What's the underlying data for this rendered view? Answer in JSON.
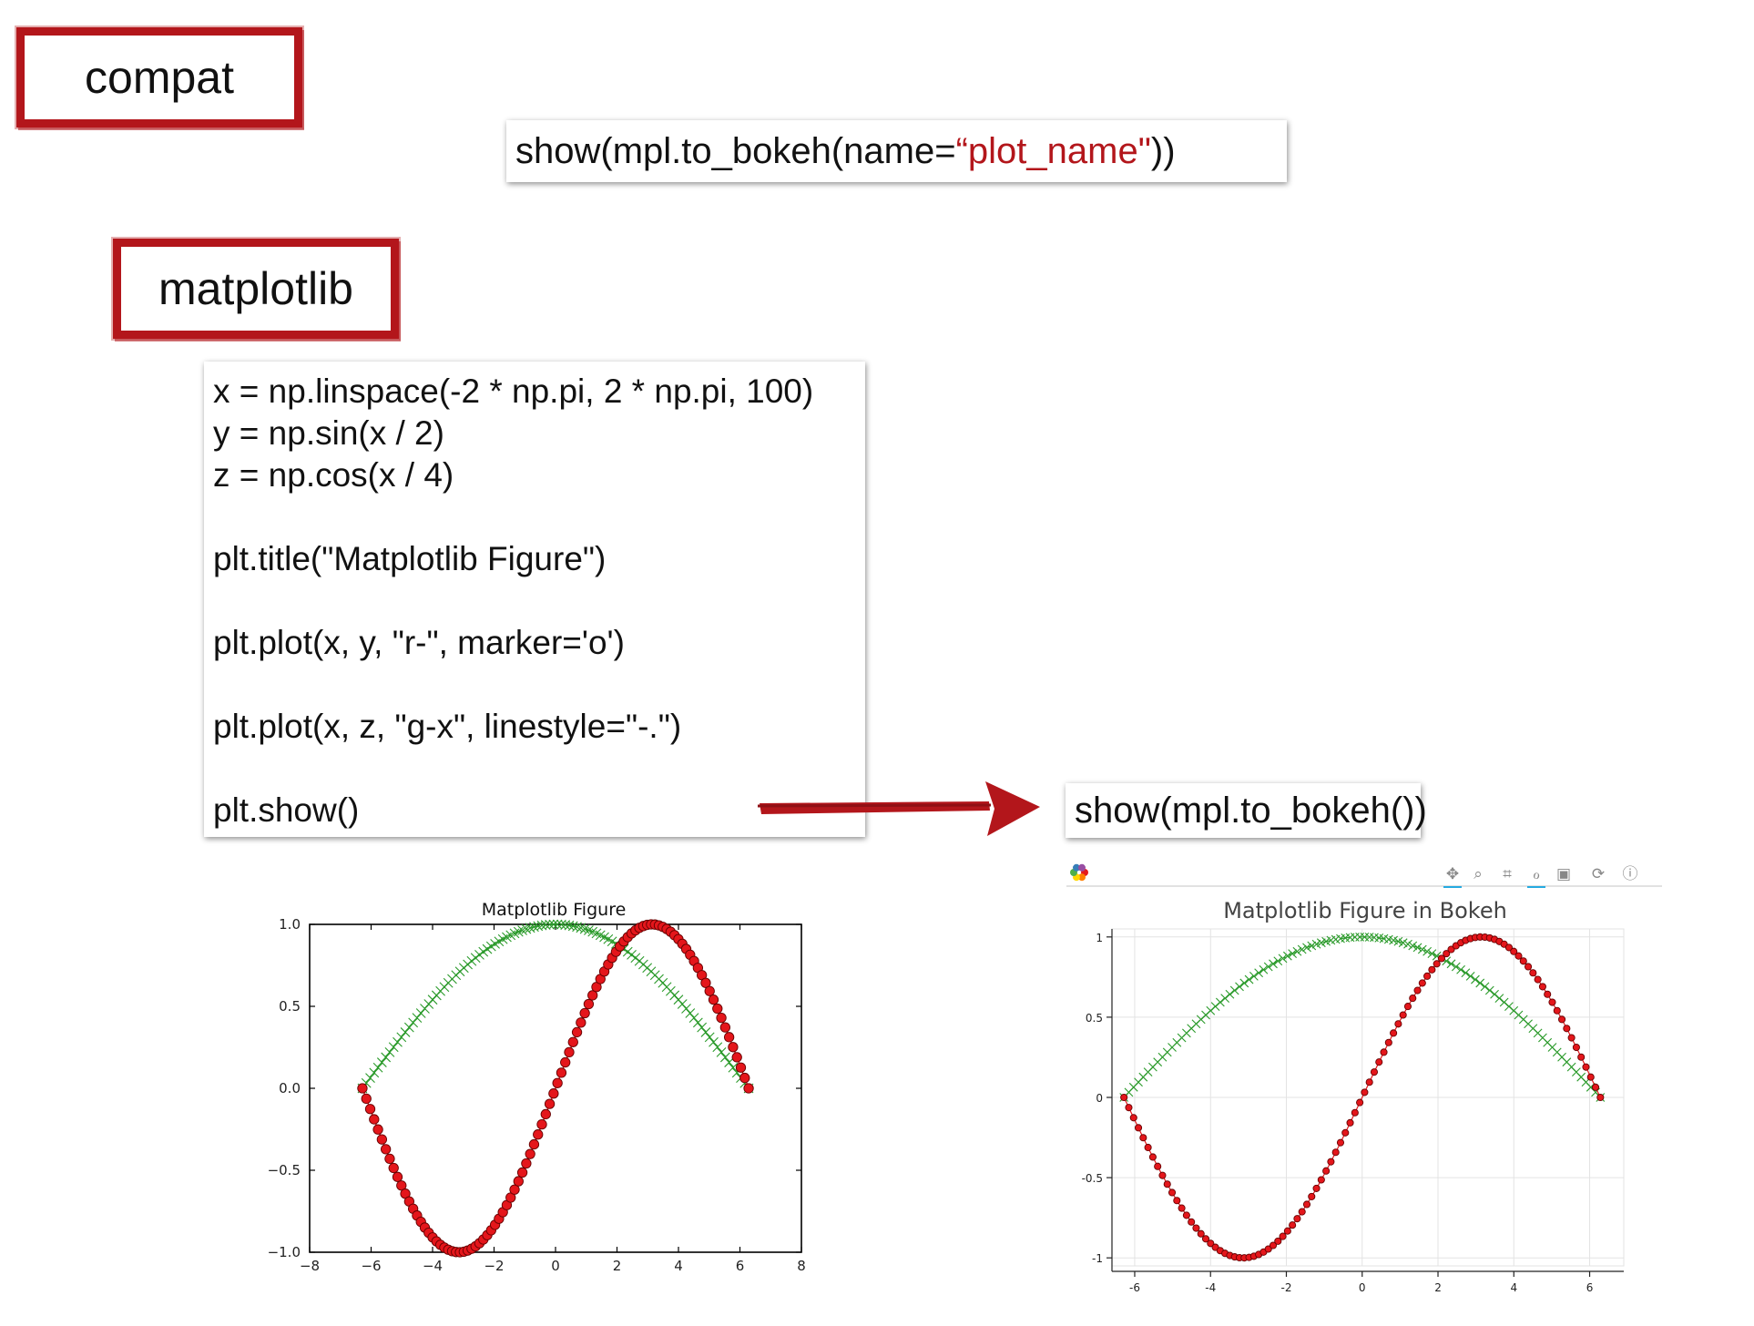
{
  "labels": {
    "compat": "compat",
    "matplotlib": "matplotlib"
  },
  "snippet_top": {
    "before": "show(mpl.to_bokeh(name=",
    "string": "“plot_name\"",
    "after": "))"
  },
  "snippet_right": "show(mpl.to_bokeh())",
  "code_lines": [
    "x = np.linspace(-2 * np.pi, 2 * np.pi, 100)",
    "y = np.sin(x / 2)",
    "z = np.cos(x / 4)",
    "",
    "plt.title(\"Matplotlib Figure\")",
    "",
    "plt.plot(x, y, \"r-\", marker='o')",
    "",
    "plt.plot(x, z, \"g-x\", linestyle=\"-.\")",
    "",
    "plt.show()"
  ],
  "colors": {
    "accent": "#b3161b",
    "series_red": "#e4161b",
    "series_green": "#2a9a2a"
  },
  "chart_data": [
    {
      "type": "line",
      "title": "Matplotlib Figure",
      "xlim": [
        -8,
        8
      ],
      "ylim": [
        -1.0,
        1.0
      ],
      "x_ticks": [
        "−8",
        "−6",
        "−4",
        "−2",
        "0",
        "2",
        "4",
        "6",
        "8"
      ],
      "y_ticks": [
        "1.0",
        "0.5",
        "0.0",
        "−0.5",
        "−1.0"
      ],
      "grid": false,
      "x_range": [
        -6.2832,
        6.2832
      ],
      "n_points": 100,
      "series": [
        {
          "function": "sin(x/2)",
          "color": "red",
          "marker": "o",
          "linestyle": "-"
        },
        {
          "function": "cos(x/4)",
          "color": "green",
          "marker": "x",
          "linestyle": "-."
        }
      ]
    },
    {
      "type": "line",
      "title": "Matplotlib Figure in Bokeh",
      "xlim": [
        -6.6,
        6.9
      ],
      "ylim": [
        -1.05,
        1.05
      ],
      "x_ticks": [
        "-6",
        "-4",
        "-2",
        "0",
        "2",
        "4",
        "6"
      ],
      "y_ticks": [
        "1",
        "0.5",
        "0",
        "-0.5",
        "-1"
      ],
      "grid": true,
      "x_range": [
        -6.2832,
        6.2832
      ],
      "n_points": 100,
      "series": [
        {
          "function": "sin(x/2)",
          "color": "red",
          "marker": "o",
          "linestyle": "-"
        },
        {
          "function": "cos(x/4)",
          "color": "green",
          "marker": "x",
          "linestyle": "-."
        }
      ],
      "toolbar_icons": [
        "bokeh-logo-icon",
        "pan-icon",
        "wheel-zoom-icon",
        "box-zoom-icon",
        "reset-zoom-icon",
        "save-icon",
        "refresh-icon",
        "help-icon"
      ]
    }
  ]
}
